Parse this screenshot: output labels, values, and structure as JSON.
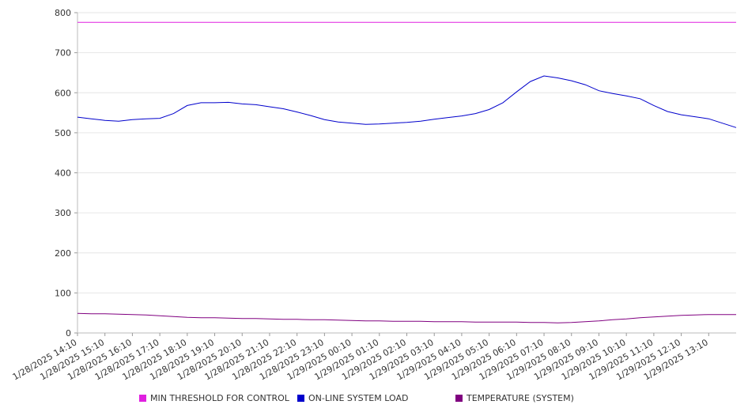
{
  "chart_data": {
    "type": "line",
    "title": "",
    "xlabel": "",
    "ylabel": "",
    "ylim": [
      0,
      800
    ],
    "yticks": [
      0,
      100,
      200,
      300,
      400,
      500,
      600,
      700,
      800
    ],
    "grid": true,
    "legend_position": "bottom",
    "x_tick_labels": [
      "1/28/2025 14:10",
      "1/28/2025 15:10",
      "1/28/2025 16:10",
      "1/28/2025 17:10",
      "1/28/2025 18:10",
      "1/28/2025 19:10",
      "1/28/2025 20:10",
      "1/28/2025 21:10",
      "1/28/2025 22:10",
      "1/28/2025 23:10",
      "1/29/2025 00:10",
      "1/29/2025 01:10",
      "1/29/2025 02:10",
      "1/29/2025 03:10",
      "1/29/2025 04:10",
      "1/29/2025 05:10",
      "1/29/2025 06:10",
      "1/29/2025 07:10",
      "1/29/2025 08:10",
      "1/29/2025 09:10",
      "1/29/2025 10:10",
      "1/29/2025 11:10",
      "1/29/2025 12:10",
      "1/29/2025 13:10"
    ],
    "x_time_labels": [
      "1/28/2025 14:10",
      "1/28/2025 14:40",
      "1/28/2025 15:10",
      "1/28/2025 15:40",
      "1/28/2025 16:10",
      "1/28/2025 16:40",
      "1/28/2025 17:10",
      "1/28/2025 17:40",
      "1/28/2025 18:10",
      "1/28/2025 18:40",
      "1/28/2025 19:10",
      "1/28/2025 19:40",
      "1/28/2025 20:10",
      "1/28/2025 20:40",
      "1/28/2025 21:10",
      "1/28/2025 21:40",
      "1/28/2025 22:10",
      "1/28/2025 22:40",
      "1/28/2025 23:10",
      "1/28/2025 23:40",
      "1/29/2025 00:10",
      "1/29/2025 00:40",
      "1/29/2025 01:10",
      "1/29/2025 01:40",
      "1/29/2025 02:10",
      "1/29/2025 02:40",
      "1/29/2025 03:10",
      "1/29/2025 03:40",
      "1/29/2025 04:10",
      "1/29/2025 04:40",
      "1/29/2025 05:10",
      "1/29/2025 05:40",
      "1/29/2025 06:10",
      "1/29/2025 06:40",
      "1/29/2025 07:10",
      "1/29/2025 07:40",
      "1/29/2025 08:10",
      "1/29/2025 08:40",
      "1/29/2025 09:10",
      "1/29/2025 09:40",
      "1/29/2025 10:10",
      "1/29/2025 10:40",
      "1/29/2025 11:10",
      "1/29/2025 11:40",
      "1/29/2025 12:10",
      "1/29/2025 12:40",
      "1/29/2025 13:10",
      "1/29/2025 13:40"
    ],
    "series": [
      {
        "name": "MIN THRESHOLD FOR CONTROL",
        "color": "#e020e0",
        "values": [
          776,
          776,
          776,
          776,
          776,
          776,
          776,
          776,
          776,
          776,
          776,
          776,
          776,
          776,
          776,
          776,
          776,
          776,
          776,
          776,
          776,
          776,
          776,
          776,
          776,
          776,
          776,
          776,
          776,
          776,
          776,
          776,
          776,
          776,
          776,
          776,
          776,
          776,
          776,
          776,
          776,
          776,
          776,
          776,
          776,
          776,
          776,
          776
        ]
      },
      {
        "name": "ON-LINE SYSTEM LOAD",
        "color": "#0000cc",
        "values": [
          539,
          535,
          531,
          529,
          533,
          535,
          536,
          548,
          568,
          575,
          575,
          576,
          572,
          570,
          565,
          560,
          552,
          543,
          533,
          527,
          524,
          521,
          522,
          524,
          526,
          529,
          534,
          538,
          542,
          548,
          558,
          575,
          602,
          628,
          642,
          637,
          630,
          620,
          605,
          598,
          592,
          585,
          568,
          553,
          545,
          540,
          535,
          513
        ]
      },
      {
        "name": "TEMPERATURE (SYSTEM)",
        "color": "#800080",
        "values": [
          49,
          48,
          48,
          47,
          46,
          45,
          43,
          41,
          39,
          38,
          38,
          37,
          36,
          36,
          35,
          34,
          34,
          33,
          33,
          32,
          31,
          30,
          30,
          29,
          29,
          29,
          28,
          28,
          28,
          27,
          27,
          27,
          27,
          26,
          26,
          25,
          26,
          28,
          30,
          33,
          35,
          38,
          40,
          42,
          44,
          45,
          46,
          46
        ]
      }
    ]
  }
}
